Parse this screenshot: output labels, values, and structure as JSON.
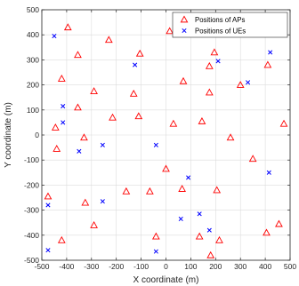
{
  "chart_data": {
    "type": "scatter",
    "xlabel": "X coordinate (m)",
    "ylabel": "Y coordinate (m)",
    "xlim": [
      -500,
      500
    ],
    "ylim": [
      -500,
      500
    ],
    "xticks": [
      -500,
      -400,
      -300,
      -200,
      -100,
      0,
      100,
      200,
      300,
      400,
      500
    ],
    "yticks": [
      -500,
      -400,
      -300,
      -200,
      -100,
      0,
      100,
      200,
      300,
      400,
      500
    ],
    "grid": true,
    "legend_position": "top-right",
    "series": [
      {
        "name": "Positions of APs",
        "marker": "triangle",
        "color": "#ff0000",
        "points": [
          [
            -395,
            430
          ],
          [
            -230,
            380
          ],
          [
            15,
            415
          ],
          [
            -355,
            320
          ],
          [
            -105,
            325
          ],
          [
            195,
            330
          ],
          [
            175,
            275
          ],
          [
            410,
            280
          ],
          [
            -420,
            225
          ],
          [
            -290,
            175
          ],
          [
            70,
            215
          ],
          [
            300,
            200
          ],
          [
            -355,
            110
          ],
          [
            -130,
            165
          ],
          [
            175,
            170
          ],
          [
            -215,
            70
          ],
          [
            -110,
            75
          ],
          [
            30,
            45
          ],
          [
            145,
            55
          ],
          [
            475,
            45
          ],
          [
            -445,
            30
          ],
          [
            -330,
            -10
          ],
          [
            260,
            -10
          ],
          [
            -440,
            -55
          ],
          [
            350,
            -95
          ],
          [
            0,
            -135
          ],
          [
            -160,
            -225
          ],
          [
            -65,
            -225
          ],
          [
            65,
            -215
          ],
          [
            205,
            -220
          ],
          [
            -475,
            -245
          ],
          [
            -325,
            -270
          ],
          [
            -290,
            -360
          ],
          [
            -40,
            -405
          ],
          [
            135,
            -405
          ],
          [
            215,
            -420
          ],
          [
            -420,
            -420
          ],
          [
            405,
            -390
          ],
          [
            455,
            -355
          ],
          [
            180,
            -480
          ]
        ]
      },
      {
        "name": "Positions of UEs",
        "marker": "x",
        "color": "#0000ff",
        "points": [
          [
            -450,
            395
          ],
          [
            -125,
            280
          ],
          [
            210,
            295
          ],
          [
            420,
            330
          ],
          [
            330,
            210
          ],
          [
            -415,
            115
          ],
          [
            -415,
            50
          ],
          [
            -350,
            -65
          ],
          [
            -255,
            -40
          ],
          [
            -40,
            -40
          ],
          [
            415,
            -150
          ],
          [
            90,
            -170
          ],
          [
            -255,
            -265
          ],
          [
            -475,
            -280
          ],
          [
            60,
            -335
          ],
          [
            135,
            -315
          ],
          [
            175,
            -380
          ],
          [
            -40,
            -465
          ],
          [
            -475,
            -460
          ]
        ]
      }
    ]
  }
}
